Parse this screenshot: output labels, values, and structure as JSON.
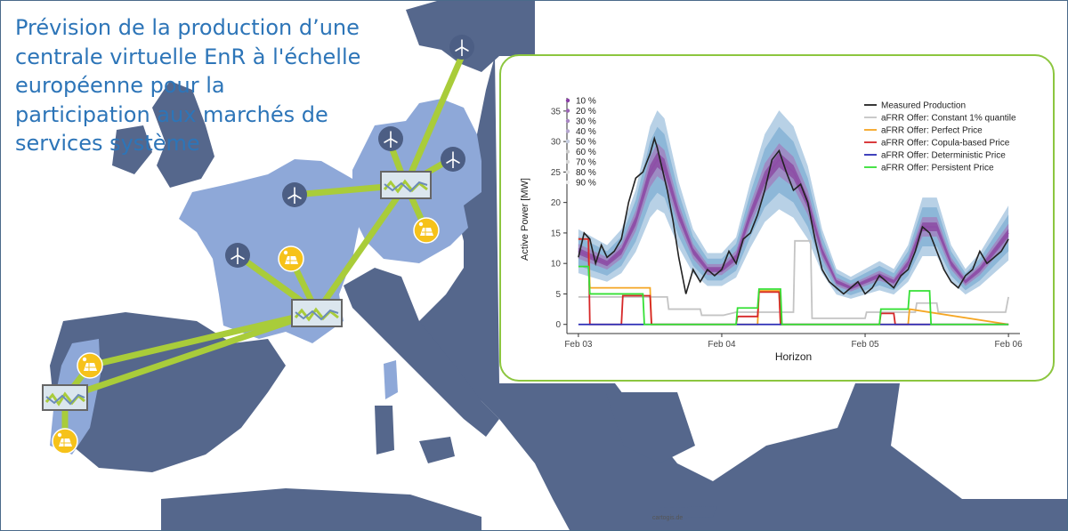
{
  "title": "Prévision de la production d’une\ncentrale virtuelle EnR à l'échelle\neuropéenne pour la\nparticipation aux marchés de\nservices système",
  "map_credit": "cartogis.de",
  "colors": {
    "sea": "#ffffff",
    "land_dark": "#55678c",
    "land_highlight": "#8ea8d8",
    "link_line": "#a9cc3a",
    "wind_icon_bg": "#4c5e84",
    "solar_icon_bg": "#f6c21a",
    "panel_border": "#8cc63f"
  },
  "map_icons": {
    "wind": "wind-turbine-icon",
    "solar": "solar-panel-icon",
    "plant": "virtual-power-plant-icon"
  },
  "chart_data": {
    "type": "line",
    "xlabel": "Horizon",
    "ylabel": "Active Power [MW]",
    "ylim": [
      -1.5,
      36
    ],
    "yticks": [
      0,
      5,
      10,
      15,
      20,
      25,
      30,
      35
    ],
    "xlim": [
      -0.08,
      3.08
    ],
    "xticks": [
      {
        "x": 0,
        "label": "Feb 03"
      },
      {
        "x": 1,
        "label": "Feb 04"
      },
      {
        "x": 2,
        "label": "Feb 05"
      },
      {
        "x": 3,
        "label": "Feb 06"
      }
    ],
    "grid": false,
    "quantile_legend": {
      "labels": [
        "10 %",
        "20 %",
        "30 %",
        "40 %",
        "50 %",
        "60 %",
        "70 %",
        "80 %",
        "90 %"
      ],
      "colors": [
        "#8a3fa6",
        "#9a63b4",
        "#a886c3",
        "#b5a6cf",
        "#c6cde0",
        "#cccccc",
        "#d7d7d7",
        "#e2e2e2",
        "#eeeeee"
      ]
    },
    "bands": [
      {
        "fill": "#b8d1e6",
        "spread": 0.3
      },
      {
        "fill": "#8db7d8",
        "spread": 0.2
      },
      {
        "fill": "#9d8cc4",
        "spread": 0.1
      },
      {
        "fill": "#8e55a8",
        "spread": 0.045
      }
    ],
    "median": {
      "color": "#8e4ea8",
      "x": [
        0,
        0.1,
        0.2,
        0.3,
        0.4,
        0.5,
        0.55,
        0.6,
        0.65,
        0.7,
        0.8,
        0.9,
        1.0,
        1.1,
        1.2,
        1.3,
        1.4,
        1.5,
        1.6,
        1.7,
        1.8,
        1.9,
        2.0,
        2.1,
        2.2,
        2.3,
        2.4,
        2.5,
        2.6,
        2.7,
        2.8,
        2.9,
        3.0
      ],
      "y": [
        12,
        11,
        10,
        12,
        17,
        25,
        27,
        26,
        22,
        18,
        12,
        9,
        9,
        11,
        18,
        24,
        27,
        25,
        20,
        12,
        7,
        6,
        7,
        8,
        7,
        10,
        16,
        16,
        10,
        7,
        9,
        12,
        15
      ]
    },
    "series": [
      {
        "name": "Measured Production",
        "color": "#222222",
        "x": [
          0,
          0.04,
          0.08,
          0.12,
          0.16,
          0.2,
          0.25,
          0.3,
          0.35,
          0.4,
          0.45,
          0.5,
          0.53,
          0.55,
          0.58,
          0.62,
          0.66,
          0.7,
          0.75,
          0.8,
          0.85,
          0.9,
          0.95,
          1.0,
          1.05,
          1.1,
          1.15,
          1.2,
          1.25,
          1.3,
          1.35,
          1.4,
          1.45,
          1.5,
          1.55,
          1.6,
          1.65,
          1.7,
          1.75,
          1.8,
          1.85,
          1.9,
          1.95,
          2.0,
          2.05,
          2.1,
          2.15,
          2.2,
          2.25,
          2.3,
          2.35,
          2.4,
          2.45,
          2.5,
          2.55,
          2.6,
          2.65,
          2.7,
          2.75,
          2.8,
          2.85,
          2.9,
          2.95,
          3.0
        ],
        "y": [
          11,
          15,
          14,
          10,
          13,
          11,
          12,
          14,
          20,
          24,
          25,
          28,
          30.5,
          29,
          26,
          22,
          17,
          11,
          5,
          9,
          7,
          9,
          8,
          9,
          12,
          10,
          14,
          15,
          18,
          22,
          27,
          28.5,
          25,
          22,
          23,
          20,
          14,
          9,
          7,
          6,
          5,
          6,
          7,
          5,
          6,
          8,
          7,
          6,
          8,
          9,
          12,
          16,
          15,
          12,
          9,
          7,
          6,
          8,
          9,
          12,
          10,
          11,
          12,
          14
        ]
      },
      {
        "name": "aFRR Offer: Constant 1% quantile",
        "color": "#c4c4c4",
        "x": [
          0,
          0.62,
          0.63,
          0.85,
          0.86,
          1.0,
          1.01,
          1.1,
          1.5,
          1.51,
          1.62,
          1.63,
          2.0,
          2.01,
          2.35,
          2.36,
          2.5,
          2.51,
          2.98,
          3.0
        ],
        "y": [
          4.5,
          4.5,
          2.5,
          2.5,
          1.5,
          1.5,
          1.5,
          2,
          2,
          13.7,
          13.7,
          1,
          1,
          2,
          2,
          3.5,
          3.5,
          2,
          2,
          4.5
        ]
      },
      {
        "name": "aFRR Offer: Perfect Price",
        "color": "#f5a623",
        "x": [
          0,
          0.07,
          0.08,
          0.5,
          0.51,
          1.0,
          1.25,
          1.26,
          1.4,
          1.41,
          2.0,
          2.3,
          2.31,
          3.0
        ],
        "y": [
          14,
          14,
          6,
          6,
          0,
          0,
          0,
          5.5,
          5.5,
          0,
          0,
          0,
          2.5,
          0
        ]
      },
      {
        "name": "aFRR Offer: Copula-based Price",
        "color": "#d62728",
        "x": [
          0,
          0.07,
          0.08,
          0.3,
          0.31,
          0.5,
          0.51,
          1.0,
          1.1,
          1.11,
          1.25,
          1.26,
          1.4,
          1.41,
          2.0,
          2.1,
          2.11,
          2.2,
          2.21,
          3.0
        ],
        "y": [
          14,
          14,
          0,
          0,
          4.7,
          4.7,
          0,
          0,
          0,
          1.3,
          1.3,
          5.3,
          5.3,
          0,
          0,
          0,
          1.8,
          1.8,
          0,
          0
        ]
      },
      {
        "name": "aFRR Offer: Deterministic Price",
        "color": "#2b2db5",
        "x": [
          0,
          3.0
        ],
        "y": [
          0,
          0
        ]
      },
      {
        "name": "aFRR Offer: Persistent Price",
        "color": "#35e035",
        "x": [
          0,
          0.07,
          0.08,
          0.45,
          0.46,
          1.0,
          1.1,
          1.11,
          1.25,
          1.26,
          1.41,
          1.42,
          2.0,
          2.1,
          2.11,
          2.3,
          2.31,
          2.45,
          2.46,
          3.0
        ],
        "y": [
          9.5,
          9.5,
          5,
          5,
          0,
          0,
          0,
          2.7,
          2.7,
          5.8,
          5.8,
          0,
          0,
          0,
          2.5,
          2.5,
          5.5,
          5.5,
          0,
          0
        ]
      }
    ]
  }
}
